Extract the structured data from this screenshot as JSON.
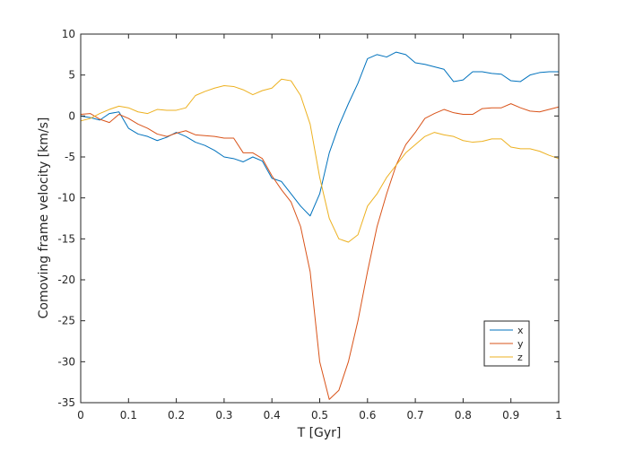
{
  "chart_data": {
    "type": "line",
    "title": "",
    "xlabel": "T [Gyr]",
    "ylabel": "Comoving frame velocity [km/s]",
    "xlim": [
      0,
      1
    ],
    "ylim": [
      -35,
      10
    ],
    "x_ticks": [
      "0",
      "0.1",
      "0.2",
      "0.3",
      "0.4",
      "0.5",
      "0.6",
      "0.7",
      "0.8",
      "0.9",
      "1"
    ],
    "y_ticks": [
      "10",
      "5",
      "0",
      "-5",
      "-10",
      "-15",
      "-20",
      "-25",
      "-30",
      "-35"
    ],
    "grid": false,
    "legend_position": "bottom-right",
    "x": [
      0,
      0.02,
      0.04,
      0.06,
      0.08,
      0.1,
      0.12,
      0.14,
      0.16,
      0.18,
      0.2,
      0.22,
      0.24,
      0.26,
      0.28,
      0.3,
      0.32,
      0.34,
      0.36,
      0.38,
      0.4,
      0.42,
      0.44,
      0.46,
      0.48,
      0.5,
      0.52,
      0.54,
      0.56,
      0.58,
      0.6,
      0.62,
      0.64,
      0.66,
      0.68,
      0.7,
      0.72,
      0.74,
      0.76,
      0.78,
      0.8,
      0.82,
      0.84,
      0.86,
      0.88,
      0.9,
      0.92,
      0.94,
      0.96,
      0.98,
      1.0
    ],
    "series": [
      {
        "name": "x",
        "color": "#0072bd",
        "values": [
          0,
          -0.2,
          -0.5,
          0.3,
          0.5,
          -1.5,
          -2.2,
          -2.5,
          -3.0,
          -2.6,
          -2.0,
          -2.5,
          -3.2,
          -3.6,
          -4.2,
          -5.0,
          -5.2,
          -5.6,
          -5.0,
          -5.5,
          -7.6,
          -8.0,
          -9.5,
          -11.0,
          -12.2,
          -9.5,
          -4.5,
          -1.2,
          1.5,
          4.0,
          7.0,
          7.5,
          7.2,
          7.8,
          7.5,
          6.5,
          6.3,
          6.0,
          5.7,
          4.2,
          4.4,
          5.4,
          5.4,
          5.2,
          5.1,
          4.3,
          4.2,
          5.0,
          5.3,
          5.4,
          5.4
        ]
      },
      {
        "name": "y",
        "color": "#d95319",
        "values": [
          0.2,
          0.3,
          -0.4,
          -0.8,
          0.2,
          -0.3,
          -1.0,
          -1.5,
          -2.2,
          -2.5,
          -2.1,
          -1.8,
          -2.3,
          -2.4,
          -2.5,
          -2.7,
          -2.7,
          -4.5,
          -4.5,
          -5.2,
          -7.3,
          -9.0,
          -10.5,
          -13.5,
          -19.0,
          -30.0,
          -34.6,
          -33.5,
          -30.0,
          -25.0,
          -19.0,
          -13.5,
          -9.5,
          -6.0,
          -3.5,
          -2.0,
          -0.3,
          0.3,
          0.8,
          0.4,
          0.2,
          0.2,
          0.9,
          1.0,
          1.0,
          1.5,
          1.0,
          0.6,
          0.5,
          0.8,
          1.1
        ]
      },
      {
        "name": "z",
        "color": "#edb120",
        "values": [
          -0.6,
          -0.3,
          0.3,
          0.8,
          1.2,
          1.0,
          0.5,
          0.3,
          0.8,
          0.7,
          0.7,
          1.0,
          2.5,
          3.0,
          3.4,
          3.7,
          3.6,
          3.2,
          2.6,
          3.1,
          3.4,
          4.5,
          4.3,
          2.5,
          -1.0,
          -7.5,
          -12.5,
          -15.0,
          -15.4,
          -14.5,
          -11.0,
          -9.5,
          -7.5,
          -6.0,
          -4.5,
          -3.5,
          -2.5,
          -2.0,
          -2.3,
          -2.5,
          -3.0,
          -3.2,
          -3.1,
          -2.8,
          -2.8,
          -3.8,
          -4.0,
          -4.0,
          -4.3,
          -4.8,
          -5.2
        ]
      }
    ]
  }
}
